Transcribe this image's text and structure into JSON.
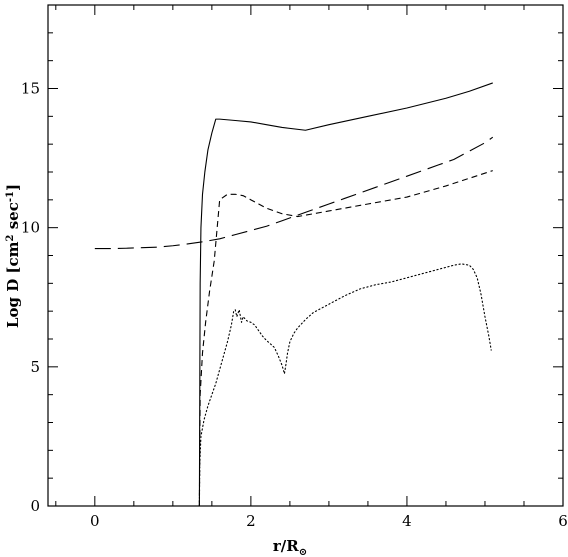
{
  "chart_data": {
    "type": "line",
    "title": "",
    "xlabel": "r/R",
    "xlabel_subscript": "⊙",
    "ylabel_main": "Log D [cm",
    "ylabel_sup1": "2",
    "ylabel_mid": " sec",
    "ylabel_sup2": "-1",
    "ylabel_end": "]",
    "xlim": [
      -0.6,
      6
    ],
    "ylim": [
      0,
      18
    ],
    "xticks": [
      "0",
      "2",
      "4",
      "6"
    ],
    "yticks": [
      "0",
      "5",
      "10",
      "15"
    ],
    "grid": false,
    "legend": "none",
    "series": [
      {
        "style": "solid",
        "x": [
          1.34,
          1.345,
          1.35,
          1.36,
          1.38,
          1.41,
          1.45,
          1.5,
          1.55,
          1.6,
          1.8,
          2.0,
          2.2,
          2.4,
          2.7,
          3.0,
          3.5,
          4.0,
          4.5,
          4.8,
          5.1
        ],
        "y": [
          0.0,
          4.0,
          8.0,
          10.0,
          11.2,
          12.0,
          12.8,
          13.4,
          13.9,
          13.9,
          13.85,
          13.8,
          13.7,
          13.6,
          13.5,
          13.7,
          14.0,
          14.3,
          14.65,
          14.9,
          15.2
        ]
      },
      {
        "style": "short-dash",
        "x": [
          1.34,
          1.345,
          1.35,
          1.38,
          1.42,
          1.47,
          1.53,
          1.6,
          1.7,
          1.8,
          1.9,
          2.0,
          2.2,
          2.4,
          2.6,
          2.8,
          3.0,
          3.5,
          4.0,
          4.5,
          5.1
        ],
        "y": [
          0.0,
          2.0,
          4.0,
          5.5,
          6.6,
          7.7,
          8.8,
          11.0,
          11.2,
          11.2,
          11.15,
          11.0,
          10.7,
          10.5,
          10.4,
          10.5,
          10.6,
          10.85,
          11.1,
          11.5,
          12.05
        ]
      },
      {
        "style": "long-dash",
        "x": [
          0.0,
          0.2,
          0.4,
          0.6,
          0.8,
          1.0,
          1.2,
          1.4,
          1.6,
          1.8,
          2.0,
          2.2,
          2.4,
          2.6,
          2.8,
          3.0,
          3.2,
          3.4,
          3.6,
          3.8,
          4.0,
          4.2,
          4.4,
          4.6,
          4.8,
          5.0,
          5.1
        ],
        "y": [
          9.25,
          9.25,
          9.26,
          9.28,
          9.3,
          9.35,
          9.42,
          9.5,
          9.6,
          9.75,
          9.9,
          10.05,
          10.25,
          10.45,
          10.65,
          10.85,
          11.05,
          11.25,
          11.45,
          11.65,
          11.85,
          12.05,
          12.25,
          12.45,
          12.75,
          13.05,
          13.25
        ]
      },
      {
        "style": "dotted",
        "x": [
          1.34,
          1.345,
          1.36,
          1.4,
          1.45,
          1.5,
          1.55,
          1.6,
          1.65,
          1.7,
          1.75,
          1.78,
          1.8,
          1.82,
          1.85,
          1.88,
          1.9,
          1.95,
          2.0,
          2.05,
          2.1,
          2.15,
          2.2,
          2.3,
          2.35,
          2.4,
          2.43,
          2.45,
          2.47,
          2.5,
          2.55,
          2.6,
          2.7,
          2.8,
          3.0,
          3.2,
          3.4,
          3.6,
          3.8,
          4.0,
          4.2,
          4.4,
          4.6,
          4.7,
          4.8,
          4.85,
          4.9,
          4.95,
          5.0,
          5.05,
          5.08
        ],
        "y": [
          0.0,
          1.5,
          2.5,
          3.1,
          3.6,
          4.0,
          4.4,
          4.9,
          5.4,
          5.9,
          6.5,
          7.0,
          7.05,
          6.8,
          7.05,
          6.6,
          6.8,
          6.65,
          6.6,
          6.5,
          6.3,
          6.1,
          5.95,
          5.7,
          5.4,
          5.05,
          4.75,
          5.1,
          5.5,
          5.9,
          6.2,
          6.4,
          6.7,
          6.95,
          7.25,
          7.55,
          7.8,
          7.95,
          8.05,
          8.2,
          8.35,
          8.5,
          8.65,
          8.7,
          8.65,
          8.5,
          8.2,
          7.6,
          6.8,
          6.1,
          5.6
        ]
      }
    ]
  }
}
